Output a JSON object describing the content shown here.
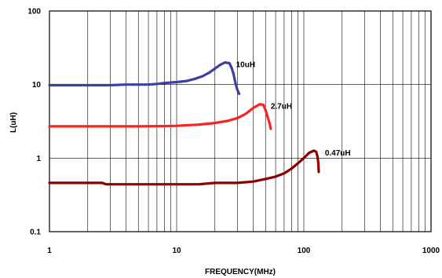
{
  "chart_data": {
    "type": "line",
    "title": "",
    "xlabel": "FREQUENCY(MHz)",
    "ylabel": "L(uH)",
    "x_scale": "log",
    "y_scale": "log",
    "xlim": [
      1,
      1000
    ],
    "ylim": [
      0.1,
      100
    ],
    "x_ticks": [
      "1",
      "10",
      "100",
      "1000"
    ],
    "y_ticks": [
      "0.1",
      "1",
      "10",
      "100"
    ],
    "grid": true,
    "series": [
      {
        "name": "10uH",
        "color": "#3f3f9f",
        "points": [
          [
            1,
            9.8
          ],
          [
            2,
            9.8
          ],
          [
            3,
            9.8
          ],
          [
            4,
            10.0
          ],
          [
            5,
            10.0
          ],
          [
            6,
            10.0
          ],
          [
            7,
            10.2
          ],
          [
            8,
            10.5
          ],
          [
            10,
            10.8
          ],
          [
            12,
            11.2
          ],
          [
            14,
            12.0
          ],
          [
            16,
            13.0
          ],
          [
            18,
            14.5
          ],
          [
            20,
            16.5
          ],
          [
            22,
            18.5
          ],
          [
            24,
            20.0
          ],
          [
            26,
            19.5
          ],
          [
            27,
            17.0
          ],
          [
            28,
            14.0
          ],
          [
            29,
            10.5
          ],
          [
            30,
            8.5
          ],
          [
            31,
            7.5
          ]
        ]
      },
      {
        "name": "2.7uH",
        "color": "#ff2020",
        "points": [
          [
            1,
            2.7
          ],
          [
            2,
            2.7
          ],
          [
            3,
            2.7
          ],
          [
            5,
            2.7
          ],
          [
            8,
            2.72
          ],
          [
            10,
            2.75
          ],
          [
            15,
            2.85
          ],
          [
            20,
            3.0
          ],
          [
            25,
            3.2
          ],
          [
            30,
            3.5
          ],
          [
            35,
            4.0
          ],
          [
            40,
            4.8
          ],
          [
            45,
            5.4
          ],
          [
            48,
            5.3
          ],
          [
            50,
            4.5
          ],
          [
            52,
            3.6
          ],
          [
            54,
            2.9
          ],
          [
            55,
            2.5
          ]
        ]
      },
      {
        "name": "0.47uH",
        "color": "#8b0000",
        "points": [
          [
            1,
            0.46
          ],
          [
            2,
            0.46
          ],
          [
            2.6,
            0.46
          ],
          [
            2.8,
            0.44
          ],
          [
            5,
            0.44
          ],
          [
            10,
            0.44
          ],
          [
            15,
            0.44
          ],
          [
            20,
            0.46
          ],
          [
            30,
            0.46
          ],
          [
            40,
            0.48
          ],
          [
            50,
            0.52
          ],
          [
            60,
            0.56
          ],
          [
            70,
            0.62
          ],
          [
            80,
            0.72
          ],
          [
            90,
            0.85
          ],
          [
            100,
            1.0
          ],
          [
            110,
            1.18
          ],
          [
            120,
            1.26
          ],
          [
            125,
            1.22
          ],
          [
            128,
            1.05
          ],
          [
            130,
            0.85
          ],
          [
            131,
            0.65
          ]
        ]
      }
    ]
  }
}
